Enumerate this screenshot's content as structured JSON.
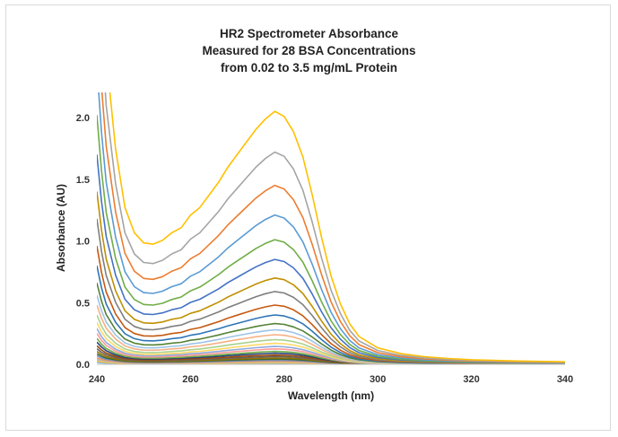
{
  "chart_data": {
    "type": "line",
    "title_lines": [
      "HR2 Spectrometer Absorbance",
      "Measured for 28 BSA Concentrations",
      "from 0.02 to 3.5 mg/mL Protein"
    ],
    "xlabel": "Wavelength (nm)",
    "ylabel": "Absorbance (AU)",
    "xlim": [
      240,
      340
    ],
    "ylim": [
      0,
      2.15
    ],
    "x_ticks": [
      "240",
      "260",
      "280",
      "300",
      "320",
      "340"
    ],
    "y_ticks": [
      "0.0",
      "0.5",
      "1.0",
      "1.5",
      "2.0"
    ],
    "grid": false,
    "legend": "none",
    "x": [
      240,
      241,
      242,
      244,
      246,
      248,
      250,
      252,
      254,
      256,
      258,
      260,
      262,
      264,
      266,
      268,
      270,
      272,
      274,
      276,
      278,
      280,
      282,
      284,
      286,
      288,
      290,
      292,
      294,
      296,
      300,
      305,
      310,
      315,
      320,
      330,
      340
    ],
    "profile": [
      2.0,
      1.55,
      1.22,
      0.85,
      0.62,
      0.52,
      0.48,
      0.475,
      0.49,
      0.52,
      0.54,
      0.59,
      0.62,
      0.67,
      0.72,
      0.78,
      0.83,
      0.88,
      0.93,
      0.97,
      1.0,
      0.98,
      0.92,
      0.82,
      0.67,
      0.5,
      0.35,
      0.24,
      0.16,
      0.11,
      0.065,
      0.042,
      0.03,
      0.023,
      0.018,
      0.013,
      0.01
    ],
    "peak_absorbance": [
      2.05,
      1.72,
      1.45,
      1.21,
      1.01,
      0.85,
      0.7,
      0.59,
      0.48,
      0.4,
      0.33,
      0.28,
      0.24,
      0.2,
      0.17,
      0.145,
      0.125,
      0.105,
      0.09,
      0.075,
      0.063,
      0.052,
      0.042,
      0.034,
      0.026,
      0.019,
      0.013,
      0.008
    ],
    "colors": [
      "#ffc000",
      "#a5a5a5",
      "#ed7d31",
      "#5b9bd5",
      "#70ad47",
      "#4472c4",
      "#bf9000",
      "#7f7f7f",
      "#c55a11",
      "#2e75b6",
      "#548235",
      "#9dc3e6",
      "#f4b183",
      "#a9d18e",
      "#ffd966",
      "#8faadc",
      "#ff9999",
      "#70ad47",
      "#264478",
      "#9e480e",
      "#636363",
      "#997300",
      "#43682b",
      "#698ed0",
      "#f1975a",
      "#b7b7b7",
      "#ffcd33",
      "#7cafdd"
    ]
  }
}
